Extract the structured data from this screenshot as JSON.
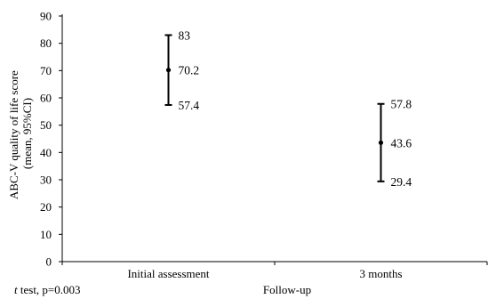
{
  "chart_data": {
    "type": "scatter",
    "categories": [
      "Initial assessment",
      "3 months"
    ],
    "series": [
      {
        "mean": [
          70.2,
          43.6
        ],
        "upper": [
          83,
          57.8
        ],
        "lower": [
          57.4,
          29.4
        ]
      }
    ],
    "labels": {
      "upper": [
        "83",
        "57.8"
      ],
      "mean": [
        "70.2",
        "43.6"
      ],
      "lower": [
        "57.4",
        "29.4"
      ]
    },
    "xlabel": "Follow-up",
    "ylabel_line1": "ABC-V quality of life score",
    "ylabel_line2": "(mean, 95%CI)",
    "ylim": [
      0,
      90
    ],
    "yticks": [
      0,
      10,
      20,
      30,
      40,
      50,
      60,
      70,
      80,
      90
    ],
    "grid": false,
    "note_italic": "t",
    "note_rest": " test, p=0.003"
  }
}
